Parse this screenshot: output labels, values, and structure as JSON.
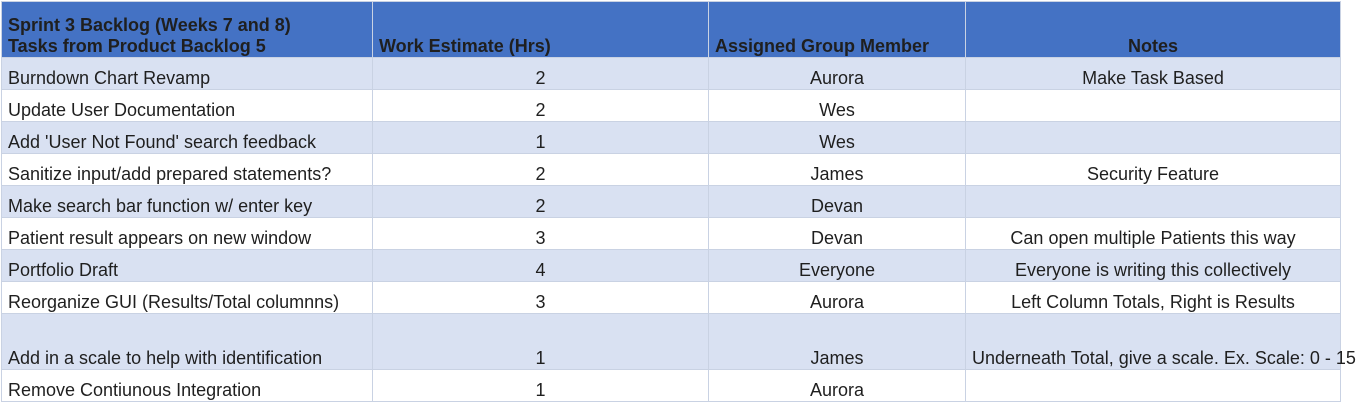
{
  "header": {
    "title_line1": "Sprint 3 Backlog (Weeks 7 and 8)",
    "title_line2": "Tasks from Product Backlog 5",
    "col_estimate": "Work Estimate (Hrs)",
    "col_member": "Assigned Group Member",
    "col_notes": "Notes"
  },
  "rows": [
    {
      "task": "Burndown Chart Revamp",
      "estimate": "2",
      "member": "Aurora",
      "notes": "Make Task Based"
    },
    {
      "task": "Update User Documentation",
      "estimate": "2",
      "member": "Wes",
      "notes": ""
    },
    {
      "task": "Add 'User Not Found' search feedback",
      "estimate": "1",
      "member": "Wes",
      "notes": ""
    },
    {
      "task": "Sanitize input/add prepared statements?",
      "estimate": "2",
      "member": "James",
      "notes": "Security Feature"
    },
    {
      "task": "Make search bar function w/ enter key",
      "estimate": "2",
      "member": "Devan",
      "notes": ""
    },
    {
      "task": "Patient result appears on new window",
      "estimate": "3",
      "member": "Devan",
      "notes": "Can open multiple Patients this way"
    },
    {
      "task": "Portfolio Draft",
      "estimate": "4",
      "member": "Everyone",
      "notes": "Everyone is writing this collectively"
    },
    {
      "task": "Reorganize GUI (Results/Total columnns)",
      "estimate": "3",
      "member": "Aurora",
      "notes": "Left Column Totals, Right is Results"
    },
    {
      "task": "Add in a scale to help with identification",
      "estimate": "1",
      "member": "James",
      "notes": "Underneath Total, give a scale. Ex. Scale: 0 - 15"
    },
    {
      "task": "Remove Contiunous Integration",
      "estimate": "1",
      "member": "Aurora",
      "notes": ""
    }
  ]
}
